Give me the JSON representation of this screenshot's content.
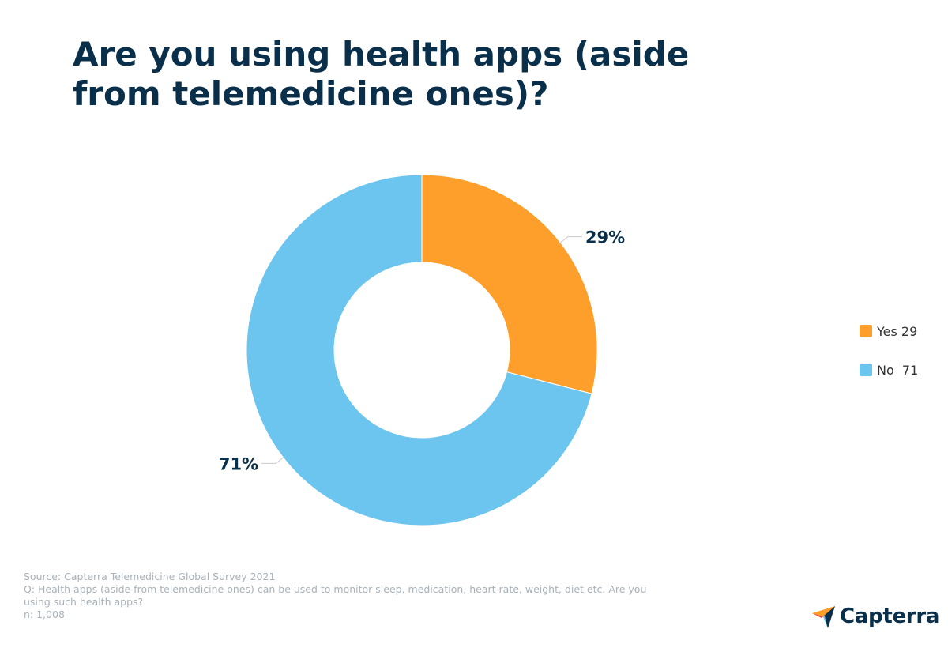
{
  "header": {
    "title_line1": "Are you using health apps (aside",
    "title_line2": "from telemedicine ones)?"
  },
  "chart_data": {
    "type": "pie",
    "donut": true,
    "categories": [
      "Yes",
      "No"
    ],
    "values": [
      29,
      71
    ],
    "value_labels": [
      "29%",
      "71%"
    ],
    "legend_labels": [
      "Yes 29",
      "No  71"
    ],
    "colors": [
      "#ff9f2b",
      "#6bc5ee"
    ],
    "legend_position": "right"
  },
  "footer": {
    "source": "Source: Capterra Telemedicine Global Survey 2021",
    "question_line1": "Q: Health apps (aside from telemedicine ones) can be used to monitor sleep, medication, heart rate, weight, diet etc. Are you",
    "question_line2": "using such health apps?",
    "sample": "n: 1,008"
  },
  "brand": {
    "name": "Capterra",
    "logo_icon": "capterra-logo-icon"
  }
}
